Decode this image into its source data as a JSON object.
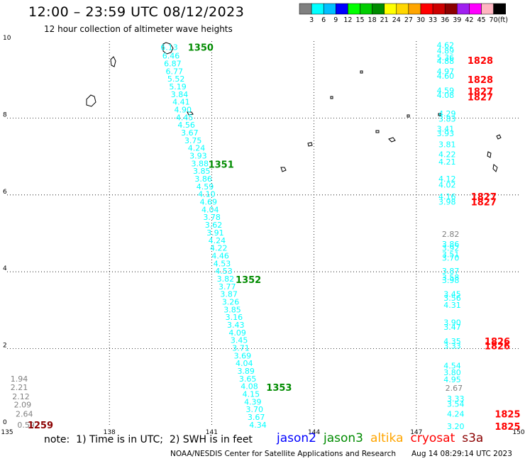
{
  "header": {
    "title": "12:00 – 23:59 UTC 08/12/2023",
    "subtitle": "12 hour collection of altimeter wave heights"
  },
  "colorbar": {
    "colors": [
      "#808080",
      "#00ffff",
      "#00bfff",
      "#0000ff",
      "#00ff00",
      "#00cd00",
      "#008b00",
      "#ffff00",
      "#ffd700",
      "#ffa500",
      "#ff0000",
      "#cd0000",
      "#8b0000",
      "#a020f0",
      "#ff00ff",
      "#ffb6c1",
      "#000000"
    ],
    "labels": [
      "3",
      "6",
      "9",
      "12",
      "15",
      "18",
      "21",
      "24",
      "27",
      "30",
      "33",
      "36",
      "39",
      "42",
      "45",
      "70"
    ],
    "unit": "(ft)"
  },
  "axes": {
    "x_ticks": [
      "135",
      "138",
      "141",
      "144",
      "147",
      "150"
    ],
    "y_ticks": [
      "0",
      "2",
      "4",
      "6",
      "8",
      "10"
    ]
  },
  "tracks": [
    {
      "sat": "jason3",
      "color": "#00ffff",
      "points": [
        [
          "6.13",
          139.5,
          9.84
        ],
        [
          "6.46",
          139.55,
          9.62
        ],
        [
          "6.87",
          139.6,
          9.42
        ],
        [
          "6.77",
          139.65,
          9.22
        ],
        [
          "5.52",
          139.7,
          9.02
        ],
        [
          "5.19",
          139.75,
          8.82
        ],
        [
          "3.84",
          139.8,
          8.62
        ],
        [
          "4.41",
          139.85,
          8.42
        ],
        [
          "4.90",
          139.9,
          8.22
        ],
        [
          "4.45",
          139.95,
          8.02
        ],
        [
          "4.56",
          140.0,
          7.82
        ],
        [
          "3.67",
          140.1,
          7.62
        ],
        [
          "3.75",
          140.2,
          7.42
        ],
        [
          "4.24",
          140.3,
          7.22
        ],
        [
          "3.93",
          140.35,
          7.02
        ],
        [
          "3.88",
          140.4,
          6.82
        ],
        [
          "3.85",
          140.45,
          6.62
        ],
        [
          "3.86",
          140.5,
          6.42
        ],
        [
          "4.59",
          140.55,
          6.22
        ],
        [
          "4.10",
          140.6,
          6.02
        ],
        [
          "4.69",
          140.65,
          5.82
        ],
        [
          "4.04",
          140.7,
          5.62
        ],
        [
          "3.78",
          140.75,
          5.42
        ],
        [
          "3.62",
          140.8,
          5.22
        ],
        [
          "3.91",
          140.85,
          5.02
        ],
        [
          "4.24",
          140.9,
          4.82
        ],
        [
          "4.22",
          140.95,
          4.62
        ],
        [
          "4.46",
          141.0,
          4.42
        ],
        [
          "4.53",
          141.05,
          4.22
        ],
        [
          "4.53",
          141.1,
          4.02
        ],
        [
          "3.82",
          141.15,
          3.82
        ],
        [
          "3.77",
          141.2,
          3.62
        ],
        [
          "3.87",
          141.25,
          3.42
        ],
        [
          "3.26",
          141.3,
          3.22
        ],
        [
          "3.85",
          141.35,
          3.02
        ],
        [
          "3.16",
          141.4,
          2.82
        ],
        [
          "3.43",
          141.45,
          2.62
        ],
        [
          "4.09",
          141.5,
          2.42
        ],
        [
          "3.45",
          141.55,
          2.22
        ],
        [
          "3.71",
          141.6,
          2.02
        ],
        [
          "3.69",
          141.65,
          1.82
        ],
        [
          "4.04",
          141.7,
          1.62
        ],
        [
          "3.89",
          141.75,
          1.42
        ],
        [
          "3.65",
          141.8,
          1.22
        ],
        [
          "4.08",
          141.85,
          1.02
        ],
        [
          "4.15",
          141.9,
          0.82
        ],
        [
          "4.39",
          141.95,
          0.62
        ],
        [
          "3.70",
          142.0,
          0.42
        ],
        [
          "3.67",
          142.05,
          0.22
        ],
        [
          "4.34",
          142.1,
          0.02
        ]
      ]
    },
    {
      "sat": "jason3",
      "color": "#00ffff",
      "points": [
        [
          "4.62",
          147.6,
          9.9
        ],
        [
          "4.89",
          147.6,
          9.75
        ],
        [
          "5.36",
          147.6,
          9.58
        ],
        [
          "4.88",
          147.6,
          9.48
        ],
        [
          "4.97",
          147.6,
          9.22
        ],
        [
          "4.60",
          147.6,
          9.1
        ],
        [
          "4.59",
          147.6,
          8.72
        ],
        [
          "4.08",
          147.6,
          8.6
        ],
        [
          "4.29",
          147.65,
          8.12
        ],
        [
          "3.83",
          147.65,
          7.98
        ],
        [
          "3.41",
          147.6,
          7.72
        ],
        [
          "3.93",
          147.6,
          7.6
        ],
        [
          "3.81",
          147.65,
          7.32
        ],
        [
          "4.22",
          147.65,
          7.06
        ],
        [
          "4.21",
          147.65,
          6.86
        ],
        [
          "4.12",
          147.65,
          6.42
        ],
        [
          "4.02",
          147.65,
          6.26
        ],
        [
          "4.16",
          147.65,
          5.96
        ],
        [
          "3.98",
          147.65,
          5.82
        ],
        [
          "3.86",
          147.75,
          4.72
        ],
        [
          "3.92",
          147.75,
          4.62
        ],
        [
          "3.51",
          147.75,
          4.46
        ],
        [
          "3.70",
          147.75,
          4.36
        ],
        [
          "3.87",
          147.75,
          4.02
        ],
        [
          "3.58",
          147.75,
          3.86
        ],
        [
          "3.98",
          147.75,
          3.78
        ],
        [
          "3.45",
          147.8,
          3.42
        ],
        [
          "3.56",
          147.8,
          3.32
        ],
        [
          "4.31",
          147.8,
          3.14
        ],
        [
          "3.90",
          147.8,
          2.68
        ],
        [
          "3.47",
          147.8,
          2.56
        ],
        [
          "4.35",
          147.8,
          2.2
        ],
        [
          "3.33",
          147.8,
          2.08
        ],
        [
          "4.54",
          147.8,
          1.56
        ],
        [
          "3.80",
          147.8,
          1.38
        ],
        [
          "4.95",
          147.8,
          1.2
        ],
        [
          "3.33",
          147.9,
          0.7
        ],
        [
          "3.54",
          147.9,
          0.56
        ],
        [
          "4.24",
          147.9,
          0.3
        ],
        [
          "3.20",
          147.9,
          -0.02
        ]
      ]
    },
    {
      "sat": "other",
      "color": "#808080",
      "points": [
        [
          "2.82",
          147.75,
          4.98
        ],
        [
          "2.67",
          147.85,
          0.98
        ],
        [
          "1.94",
          135.1,
          1.22
        ],
        [
          "2.21",
          135.1,
          1.0
        ],
        [
          "2.12",
          135.15,
          0.76
        ],
        [
          "2.09",
          135.2,
          0.54
        ],
        [
          "2.64",
          135.25,
          0.3
        ],
        [
          "0.59",
          135.3,
          0.02
        ]
      ]
    }
  ],
  "time_labels": [
    {
      "text": "1350",
      "color": "#008b00",
      "x": 140.3,
      "y": 9.84
    },
    {
      "text": "1351",
      "color": "#008b00",
      "x": 140.9,
      "y": 6.8
    },
    {
      "text": "1352",
      "color": "#008b00",
      "x": 141.7,
      "y": 3.8
    },
    {
      "text": "1353",
      "color": "#008b00",
      "x": 142.6,
      "y": 1.0
    },
    {
      "text": "1828",
      "color": "#ff0000",
      "x": 148.5,
      "y": 9.5
    },
    {
      "text": "1828",
      "color": "#ff0000",
      "x": 148.5,
      "y": 9.0
    },
    {
      "text": "1827",
      "color": "#ff0000",
      "x": 148.5,
      "y": 8.7
    },
    {
      "text": "1827",
      "color": "#ff0000",
      "x": 148.5,
      "y": 8.55
    },
    {
      "text": "1827",
      "color": "#ff0000",
      "x": 148.6,
      "y": 5.96
    },
    {
      "text": "1827",
      "color": "#ff0000",
      "x": 148.6,
      "y": 5.82
    },
    {
      "text": "1826",
      "color": "#ff0000",
      "x": 149.0,
      "y": 2.2
    },
    {
      "text": "1826",
      "color": "#ff0000",
      "x": 149.0,
      "y": 2.08
    },
    {
      "text": "1825",
      "color": "#ff0000",
      "x": 149.3,
      "y": 0.3
    },
    {
      "text": "1825",
      "color": "#ff0000",
      "x": 149.3,
      "y": -0.02
    },
    {
      "text": "1259",
      "color": "#8b0000",
      "x": 135.6,
      "y": 0.02
    }
  ],
  "footer": {
    "note": "note:  1) Time is in UTC;  2) SWH is in feet",
    "legend": [
      {
        "label": "jason2",
        "color": "#0000ff"
      },
      {
        "label": "jason3",
        "color": "#008b00"
      },
      {
        "label": "altika",
        "color": "#ffa500"
      },
      {
        "label": "cryosat",
        "color": "#ff0000"
      },
      {
        "label": "s3a",
        "color": "#8b0000"
      }
    ],
    "credit": "NOAA/NESDIS Center for Satellite Applications and Research",
    "timestamp": "Aug 14 08:29:14 UTC 2023"
  }
}
